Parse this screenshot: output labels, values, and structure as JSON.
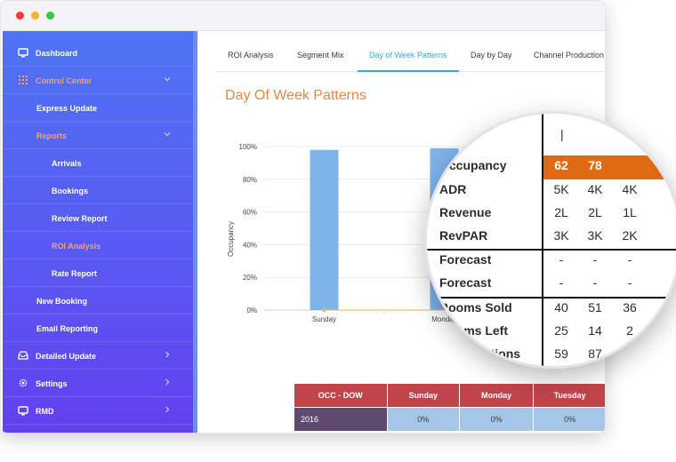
{
  "window": {
    "colors": {
      "close": "#fe3b32",
      "minimize": "#f7b32a",
      "maximize": "#2fca46"
    }
  },
  "sidebar": {
    "items": [
      {
        "label": "Dashboard",
        "icon": "monitor-icon"
      },
      {
        "label": "Control Center",
        "icon": "grid-icon",
        "chevron": "chevron-down-icon"
      },
      {
        "label": "Express Update"
      },
      {
        "label": "Reports",
        "chevron": "chevron-down-icon"
      },
      {
        "label": "Arrivals"
      },
      {
        "label": "Bookings"
      },
      {
        "label": "Review Report"
      },
      {
        "label": "ROI Analysis"
      },
      {
        "label": "Rate Report"
      },
      {
        "label": "New Booking"
      },
      {
        "label": "Email Reporting"
      },
      {
        "label": "Detailed Update",
        "icon": "inbox-icon",
        "chevron": "chevron-right-icon"
      },
      {
        "label": "Settings",
        "icon": "gear-icon",
        "chevron": "chevron-right-icon"
      },
      {
        "label": "RMD",
        "icon": "monitor-icon",
        "chevron": "chevron-right-icon"
      }
    ],
    "accent_color": "#f3a26e"
  },
  "tabs": [
    {
      "label": "ROI Analysis"
    },
    {
      "label": "Segment Mix"
    },
    {
      "label": "Day of Week Patterns",
      "active": true
    },
    {
      "label": "Day by Day"
    },
    {
      "label": "Channel Production"
    }
  ],
  "page": {
    "title": "Day Of Week Patterns",
    "title_color": "#e2884a"
  },
  "chart_data": {
    "type": "bar",
    "categories": [
      "Sunday",
      "Monday"
    ],
    "values": [
      98,
      99
    ],
    "ylabel": "Occupancy",
    "ylim": [
      0,
      100
    ],
    "yticks": [
      "0%",
      "20%",
      "40%",
      "60%",
      "80%",
      "100%"
    ],
    "grid": true,
    "bar_color": "#7eb4ea"
  },
  "table": {
    "headers": [
      "OCC - DOW",
      "Sunday",
      "Monday",
      "Tuesday"
    ],
    "rows": [
      {
        "year": "2016",
        "values": [
          "0%",
          "0%",
          "0%"
        ]
      }
    ]
  },
  "magnifier": {
    "rows": [
      {
        "label": "Occupancy",
        "values": [
          "62",
          "78",
          ""
        ],
        "highlight": true
      },
      {
        "label": "ADR",
        "values": [
          "5K",
          "4K",
          "4K"
        ]
      },
      {
        "label": "Revenue",
        "values": [
          "2L",
          "2L",
          "1L"
        ]
      },
      {
        "label": "RevPAR",
        "values": [
          "3K",
          "3K",
          "2K"
        ]
      },
      {
        "label": "Forecast",
        "values": [
          "-",
          "-",
          "-"
        ]
      },
      {
        "label": "Forecast",
        "values": [
          "-",
          "-",
          "-"
        ]
      },
      {
        "label": "Rooms Sold",
        "values": [
          "40",
          "51",
          "36"
        ]
      },
      {
        "label": "Rooms Left",
        "values": [
          "25",
          "14",
          "2"
        ]
      },
      {
        "label": "Cancellations",
        "values": [
          "59",
          "87",
          ""
        ]
      }
    ],
    "highlight_color": "#e06a12"
  }
}
